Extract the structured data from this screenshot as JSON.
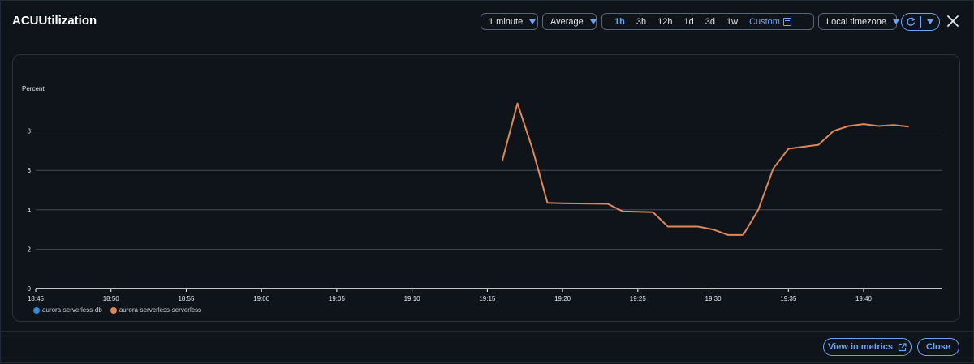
{
  "modal": {
    "title": "ACUUtilization",
    "period_select": "1 minute",
    "statistic_select": "Average",
    "time_ranges": [
      "1h",
      "3h",
      "12h",
      "1d",
      "3d",
      "1w"
    ],
    "active_range": "1h",
    "custom_label": "Custom",
    "timezone_select": "Local timezone",
    "footer": {
      "view_in_metrics": "View in metrics",
      "close": "Close"
    }
  },
  "colors": {
    "accent": "#6ba4ff",
    "series_db": "#2e8bd6",
    "series_serverless": "#e0875a"
  },
  "chart_data": {
    "type": "line",
    "ylabel": "Percent",
    "ylim": [
      0,
      10
    ],
    "yticks": [
      0,
      2,
      4,
      6,
      8
    ],
    "x_tick_labels": [
      "18:45",
      "18:50",
      "18:55",
      "19:00",
      "19:05",
      "19:10",
      "19:15",
      "19:20",
      "19:25",
      "19:30",
      "19:35",
      "19:40"
    ],
    "grid": true,
    "legend_position": "bottom-left",
    "series": [
      {
        "name": "aurora-serverless-db",
        "color": "#2e8bd6",
        "points": []
      },
      {
        "name": "aurora-serverless-serverless",
        "color": "#e0875a",
        "points": [
          [
            "19:16",
            6.5
          ],
          [
            "19:17",
            9.4
          ],
          [
            "19:18",
            7.1
          ],
          [
            "19:19",
            4.35
          ],
          [
            "19:20",
            4.33
          ],
          [
            "19:21",
            4.32
          ],
          [
            "19:22",
            4.31
          ],
          [
            "19:23",
            4.3
          ],
          [
            "19:24",
            3.92
          ],
          [
            "19:25",
            3.9
          ],
          [
            "19:26",
            3.88
          ],
          [
            "19:27",
            3.15
          ],
          [
            "19:28",
            3.15
          ],
          [
            "19:29",
            3.15
          ],
          [
            "19:30",
            3.0
          ],
          [
            "19:31",
            2.72
          ],
          [
            "19:32",
            2.72
          ],
          [
            "19:33",
            4.0
          ],
          [
            "19:34",
            6.1
          ],
          [
            "19:35",
            7.1
          ],
          [
            "19:36",
            7.2
          ],
          [
            "19:37",
            7.3
          ],
          [
            "19:38",
            8.0
          ],
          [
            "19:39",
            8.25
          ],
          [
            "19:40",
            8.35
          ],
          [
            "19:41",
            8.25
          ],
          [
            "19:42",
            8.3
          ],
          [
            "19:43",
            8.22
          ]
        ]
      }
    ]
  }
}
